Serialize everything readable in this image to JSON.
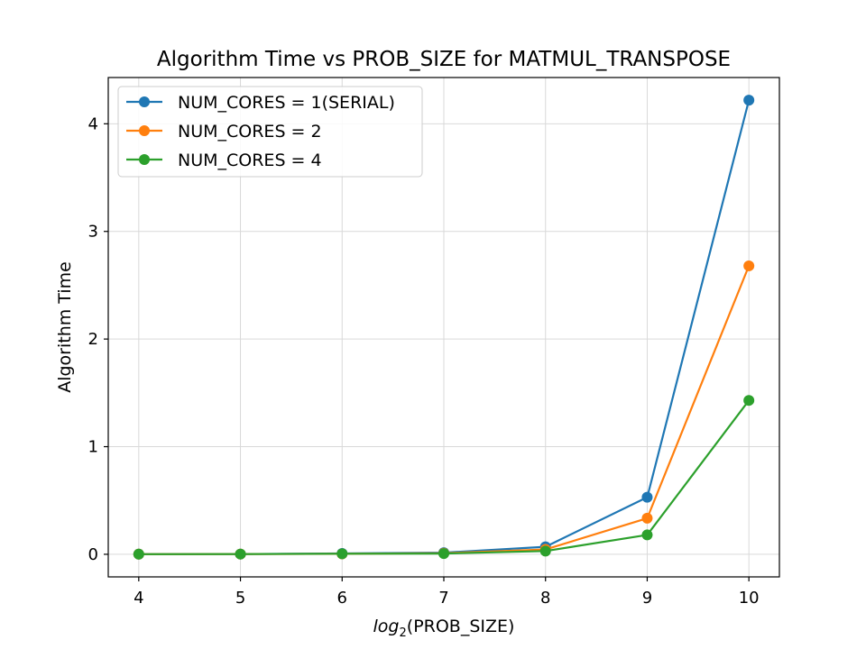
{
  "chart_data": {
    "type": "line",
    "title": "Algorithm Time vs PROB_SIZE for MATMUL_TRANSPOSE",
    "xlabel_prefix": "log",
    "xlabel_subscript": "2",
    "xlabel_suffix": "(PROB_SIZE)",
    "ylabel": "Algorithm Time",
    "x": [
      4,
      5,
      6,
      7,
      8,
      9,
      10
    ],
    "xlim": [
      3.7,
      10.3
    ],
    "ylim": [
      -0.21,
      4.43
    ],
    "xticks": [
      4,
      5,
      6,
      7,
      8,
      9,
      10
    ],
    "yticks": [
      0,
      1,
      2,
      3,
      4
    ],
    "grid": true,
    "legend_position": "upper-left",
    "series": [
      {
        "name": "NUM_CORES = 1(SERIAL)",
        "color": "#1f77b4",
        "values": [
          0.001,
          0.002,
          0.008,
          0.015,
          0.07,
          0.53,
          4.22
        ]
      },
      {
        "name": "NUM_CORES = 2",
        "color": "#ff7f0e",
        "values": [
          0.001,
          0.002,
          0.004,
          0.01,
          0.045,
          0.335,
          2.68
        ]
      },
      {
        "name": "NUM_CORES = 4",
        "color": "#2ca02c",
        "values": [
          0.001,
          0.002,
          0.005,
          0.007,
          0.03,
          0.18,
          1.43
        ]
      }
    ]
  }
}
